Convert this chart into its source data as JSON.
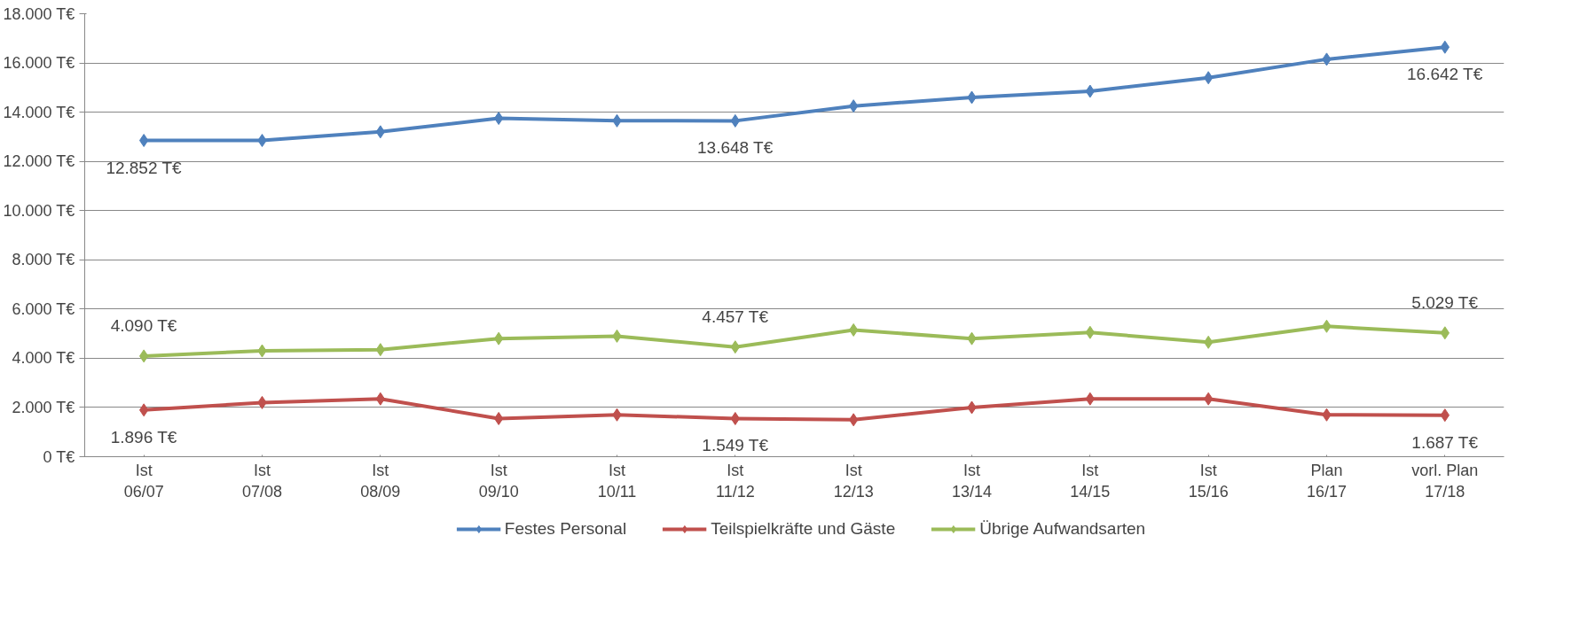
{
  "chart_data": {
    "type": "line",
    "categories": [
      "Ist\n06/07",
      "Ist\n07/08",
      "Ist\n08/09",
      "Ist\n09/10",
      "Ist\n10/11",
      "Ist\n11/12",
      "Ist\n12/13",
      "Ist\n13/14",
      "Ist\n14/15",
      "Ist\n15/16",
      "Plan\n16/17",
      "vorl. Plan\n17/18"
    ],
    "series": [
      {
        "name": "Festes Personal",
        "color": "#4f81bd",
        "values": [
          12852,
          12850,
          13200,
          13750,
          13650,
          13648,
          14250,
          14600,
          14850,
          15400,
          16150,
          16642
        ],
        "value_labels": [
          "12.852 T€",
          null,
          null,
          null,
          null,
          "13.648 T€",
          null,
          null,
          null,
          null,
          null,
          "16.642 T€"
        ]
      },
      {
        "name": "Teilspielkräfte und Gäste",
        "color": "#c0504d",
        "values": [
          1896,
          2200,
          2350,
          1550,
          1700,
          1549,
          1500,
          2000,
          2350,
          2350,
          1700,
          1687
        ],
        "value_labels": [
          "1.896 T€",
          null,
          null,
          null,
          null,
          "1.549 T€",
          null,
          null,
          null,
          null,
          null,
          "1.687 T€"
        ]
      },
      {
        "name": "Übrige Aufwandsarten",
        "color": "#9bbb59",
        "values": [
          4090,
          4300,
          4350,
          4800,
          4900,
          4457,
          5150,
          4800,
          5050,
          4650,
          5300,
          5029
        ],
        "value_labels": [
          "4.090 T€",
          null,
          null,
          null,
          null,
          "4.457 T€",
          null,
          null,
          null,
          null,
          null,
          "5.029 T€"
        ]
      }
    ],
    "ylim": [
      0,
      18000
    ],
    "yticks": [
      {
        "value": 0,
        "label": "0 T€"
      },
      {
        "value": 2000,
        "label": "2.000 T€"
      },
      {
        "value": 4000,
        "label": "4.000 T€"
      },
      {
        "value": 6000,
        "label": "6.000 T€"
      },
      {
        "value": 8000,
        "label": "8.000 T€"
      },
      {
        "value": 10000,
        "label": "10.000 T€"
      },
      {
        "value": 12000,
        "label": "12.000 T€"
      },
      {
        "value": 14000,
        "label": "14.000 T€"
      },
      {
        "value": 16000,
        "label": "16.000 T€"
      },
      {
        "value": 18000,
        "label": "18.000 T€"
      }
    ],
    "grid": "y",
    "legend": "bottom",
    "marker": "diamond",
    "line_style": "solid"
  }
}
